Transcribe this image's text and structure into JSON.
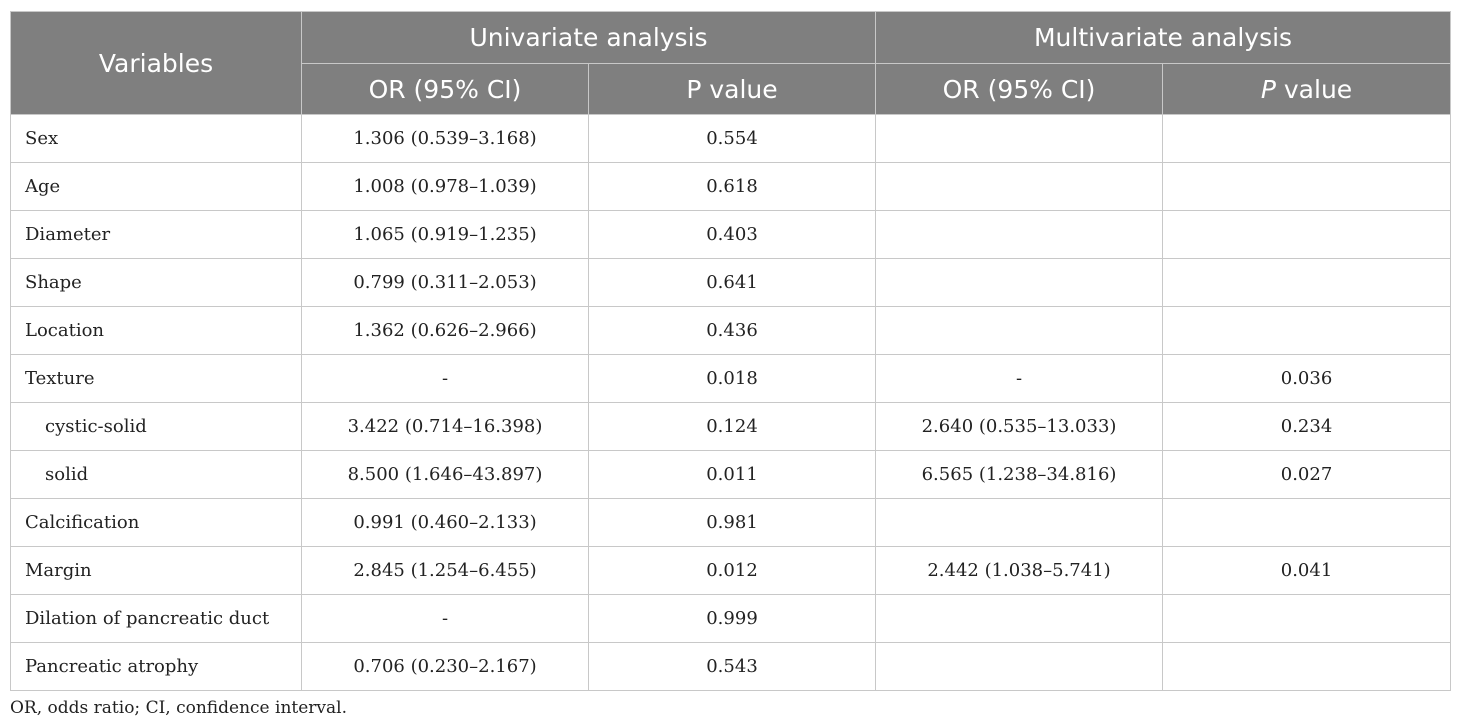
{
  "header": {
    "variables": "Variables",
    "univariate": "Univariate analysis",
    "multivariate": "Multivariate analysis",
    "uni_or": "OR (95% CI)",
    "uni_p": "P value",
    "multi_or": "OR (95% CI)",
    "multi_p_italic": "P",
    "multi_p_rest": " value"
  },
  "rows": [
    {
      "label": "Sex",
      "uni_or": "1.306 (0.539–3.168)",
      "uni_p": "0.554",
      "multi_or": "",
      "multi_p": ""
    },
    {
      "label": "Age",
      "uni_or": "1.008 (0.978–1.039)",
      "uni_p": "0.618",
      "multi_or": "",
      "multi_p": ""
    },
    {
      "label": "Diameter",
      "uni_or": "1.065 (0.919–1.235)",
      "uni_p": "0.403",
      "multi_or": "",
      "multi_p": ""
    },
    {
      "label": "Shape",
      "uni_or": "0.799 (0.311–2.053)",
      "uni_p": "0.641",
      "multi_or": "",
      "multi_p": ""
    },
    {
      "label": "Location",
      "uni_or": "1.362 (0.626–2.966)",
      "uni_p": "0.436",
      "multi_or": "",
      "multi_p": ""
    },
    {
      "label": "Texture",
      "uni_or": "-",
      "uni_p": "0.018",
      "multi_or": "-",
      "multi_p": "0.036"
    },
    {
      "label": "cystic-solid",
      "uni_or": "3.422 (0.714–16.398)",
      "uni_p": "0.124",
      "multi_or": "2.640 (0.535–13.033)",
      "multi_p": "0.234"
    },
    {
      "label": "solid",
      "uni_or": "8.500 (1.646–43.897)",
      "uni_p": "0.011",
      "multi_or": "6.565 (1.238–34.816)",
      "multi_p": "0.027"
    },
    {
      "label": "Calcification",
      "uni_or": "0.991 (0.460–2.133)",
      "uni_p": "0.981",
      "multi_or": "",
      "multi_p": ""
    },
    {
      "label": "Margin",
      "uni_or": "2.845 (1.254–6.455)",
      "uni_p": "0.012",
      "multi_or": "2.442 (1.038–5.741)",
      "multi_p": "0.041"
    },
    {
      "label": "Dilation of pancreatic duct",
      "uni_or": "-",
      "uni_p": "0.999",
      "multi_or": "",
      "multi_p": ""
    },
    {
      "label": "Pancreatic atrophy",
      "uni_or": "0.706 (0.230–2.167)",
      "uni_p": "0.543",
      "multi_or": "",
      "multi_p": ""
    }
  ],
  "footnote": "OR, odds ratio; CI, confidence interval."
}
